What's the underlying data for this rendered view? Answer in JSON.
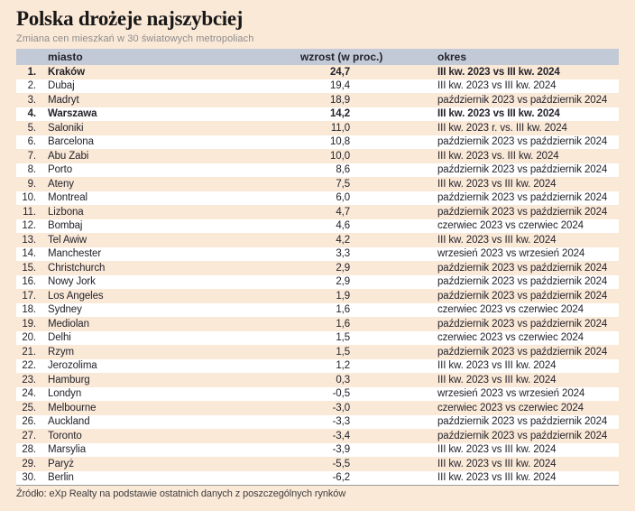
{
  "title": "Polska drożeje najszybciej",
  "subtitle": "Zmiana cen mieszkań w 30 światowych metropoliach",
  "source": "Źródło: eXp Realty na podstawie ostatnich danych z poszczególnych rynków",
  "colors": {
    "page_background": "#fbe9d8",
    "row_alt_background": "#ffffff",
    "header_background": "#c3cad7",
    "text": "#23232b",
    "subtitle_text": "#8c8c8c",
    "divider": "#9b9b9b"
  },
  "table": {
    "headers": {
      "city": "miasto",
      "growth": "wzrost (w proc.)",
      "period": "okres"
    },
    "rows": [
      {
        "rank": "1.",
        "city": "Kraków",
        "growth": "24,7",
        "period": "III kw. 2023 vs III kw. 2024",
        "bold": true
      },
      {
        "rank": "2.",
        "city": "Dubaj",
        "growth": "19,4",
        "period": "III kw. 2023 vs III kw. 2024",
        "bold": false
      },
      {
        "rank": "3.",
        "city": "Madryt",
        "growth": "18,9",
        "period": "październik 2023 vs październik 2024",
        "bold": false
      },
      {
        "rank": "4.",
        "city": "Warszawa",
        "growth": "14,2",
        "period": "III kw. 2023 vs III kw. 2024",
        "bold": true
      },
      {
        "rank": "5.",
        "city": "Saloniki",
        "growth": "11,0",
        "period": "III kw. 2023 r. vs. III kw. 2024",
        "bold": false
      },
      {
        "rank": "6.",
        "city": "Barcelona",
        "growth": "10,8",
        "period": "październik 2023 vs październik 2024",
        "bold": false
      },
      {
        "rank": "7.",
        "city": "Abu Zabi",
        "growth": "10,0",
        "period": "III kw. 2023 vs. III kw. 2024",
        "bold": false
      },
      {
        "rank": "8.",
        "city": "Porto",
        "growth": "8,6",
        "period": "październik 2023 vs październik 2024",
        "bold": false
      },
      {
        "rank": "9.",
        "city": "Ateny",
        "growth": "7,5",
        "period": "III kw. 2023 vs III kw. 2024",
        "bold": false
      },
      {
        "rank": "10.",
        "city": "Montreal",
        "growth": "6,0",
        "period": "październik 2023 vs październik 2024",
        "bold": false
      },
      {
        "rank": "11.",
        "city": "Lizbona",
        "growth": "4,7",
        "period": "październik 2023 vs październik 2024",
        "bold": false
      },
      {
        "rank": "12.",
        "city": "Bombaj",
        "growth": "4,6",
        "period": "czerwiec 2023 vs czerwiec 2024",
        "bold": false
      },
      {
        "rank": "13.",
        "city": "Tel Awiw",
        "growth": "4,2",
        "period": "III kw. 2023 vs III kw. 2024",
        "bold": false
      },
      {
        "rank": "14.",
        "city": "Manchester",
        "growth": "3,3",
        "period": "wrzesień 2023 vs wrzesień 2024",
        "bold": false
      },
      {
        "rank": "15.",
        "city": "Christchurch",
        "growth": "2,9",
        "period": "październik 2023 vs październik 2024",
        "bold": false
      },
      {
        "rank": "16.",
        "city": "Nowy Jork",
        "growth": "2,9",
        "period": "październik 2023 vs październik 2024",
        "bold": false
      },
      {
        "rank": "17.",
        "city": "Los Angeles",
        "growth": "1,9",
        "period": "październik 2023 vs październik 2024",
        "bold": false
      },
      {
        "rank": "18.",
        "city": "Sydney",
        "growth": "1,6",
        "period": "czerwiec 2023 vs czerwiec 2024",
        "bold": false
      },
      {
        "rank": "19.",
        "city": "Mediolan",
        "growth": "1,6",
        "period": "październik 2023 vs październik 2024",
        "bold": false
      },
      {
        "rank": "20.",
        "city": "Delhi",
        "growth": "1,5",
        "period": "czerwiec 2023 vs czerwiec 2024",
        "bold": false
      },
      {
        "rank": "21.",
        "city": "Rzym",
        "growth": "1,5",
        "period": "październik 2023 vs październik 2024",
        "bold": false
      },
      {
        "rank": "22.",
        "city": "Jerozolima",
        "growth": "1,2",
        "period": "III kw. 2023 vs III kw. 2024",
        "bold": false
      },
      {
        "rank": "23.",
        "city": "Hamburg",
        "growth": "0,3",
        "period": "III kw. 2023 vs III kw. 2024",
        "bold": false
      },
      {
        "rank": "24.",
        "city": "Londyn",
        "growth": "-0,5",
        "period": "wrzesień 2023 vs wrzesień 2024",
        "bold": false
      },
      {
        "rank": "25.",
        "city": "Melbourne",
        "growth": "-3,0",
        "period": "czerwiec 2023 vs czerwiec 2024",
        "bold": false
      },
      {
        "rank": "26.",
        "city": "Auckland",
        "growth": "-3,3",
        "period": "październik 2023 vs październik 2024",
        "bold": false
      },
      {
        "rank": "27.",
        "city": "Toronto",
        "growth": "-3,4",
        "period": "październik 2023 vs październik 2024",
        "bold": false
      },
      {
        "rank": "28.",
        "city": "Marsylia",
        "growth": "-3,9",
        "period": "III kw. 2023 vs III kw. 2024",
        "bold": false
      },
      {
        "rank": "29.",
        "city": "Paryż",
        "growth": "-5,5",
        "period": "III kw. 2023 vs III kw. 2024",
        "bold": false
      },
      {
        "rank": "30.",
        "city": "Berlin",
        "growth": "-6,2",
        "period": "III kw. 2023 vs III kw. 2024",
        "bold": false
      }
    ]
  },
  "chart_data": {
    "type": "table",
    "title": "Polska drożeje najszybciej",
    "subtitle": "Zmiana cen mieszkań w 30 światowych metropoliach",
    "columns": [
      "miasto",
      "wzrost (w proc.)",
      "okres"
    ],
    "categories": [
      "Kraków",
      "Dubaj",
      "Madryt",
      "Warszawa",
      "Saloniki",
      "Barcelona",
      "Abu Zabi",
      "Porto",
      "Ateny",
      "Montreal",
      "Lizbona",
      "Bombaj",
      "Tel Awiw",
      "Manchester",
      "Christchurch",
      "Nowy Jork",
      "Los Angeles",
      "Sydney",
      "Mediolan",
      "Delhi",
      "Rzym",
      "Jerozolima",
      "Hamburg",
      "Londyn",
      "Melbourne",
      "Auckland",
      "Toronto",
      "Marsylia",
      "Paryż",
      "Berlin"
    ],
    "values": [
      24.7,
      19.4,
      18.9,
      14.2,
      11.0,
      10.8,
      10.0,
      8.6,
      7.5,
      6.0,
      4.7,
      4.6,
      4.2,
      3.3,
      2.9,
      2.9,
      1.9,
      1.6,
      1.6,
      1.5,
      1.5,
      1.2,
      0.3,
      -0.5,
      -3.0,
      -3.3,
      -3.4,
      -3.9,
      -5.5,
      -6.2
    ],
    "periods": [
      "III kw. 2023 vs III kw. 2024",
      "III kw. 2023 vs III kw. 2024",
      "październik 2023 vs październik 2024",
      "III kw. 2023 vs III kw. 2024",
      "III kw. 2023 r. vs. III kw. 2024",
      "październik 2023 vs październik 2024",
      "III kw. 2023 vs. III kw. 2024",
      "październik 2023 vs październik 2024",
      "III kw. 2023 vs III kw. 2024",
      "październik 2023 vs październik 2024",
      "październik 2023 vs październik 2024",
      "czerwiec 2023 vs czerwiec 2024",
      "III kw. 2023 vs III kw. 2024",
      "wrzesień 2023 vs wrzesień 2024",
      "październik 2023 vs październik 2024",
      "październik 2023 vs październik 2024",
      "październik 2023 vs październik 2024",
      "czerwiec 2023 vs czerwiec 2024",
      "październik 2023 vs październik 2024",
      "czerwiec 2023 vs czerwiec 2024",
      "październik 2023 vs październik 2024",
      "III kw. 2023 vs III kw. 2024",
      "III kw. 2023 vs III kw. 2024",
      "wrzesień 2023 vs wrzesień 2024",
      "czerwiec 2023 vs czerwiec 2024",
      "październik 2023 vs październik 2024",
      "październik 2023 vs październik 2024",
      "III kw. 2023 vs III kw. 2024",
      "III kw. 2023 vs III kw. 2024",
      "III kw. 2023 vs III kw. 2024"
    ],
    "highlighted_rows": [
      "Kraków",
      "Warszawa"
    ],
    "source": "Źródło: eXp Realty na podstawie ostatnich danych z poszczególnych rynków"
  }
}
